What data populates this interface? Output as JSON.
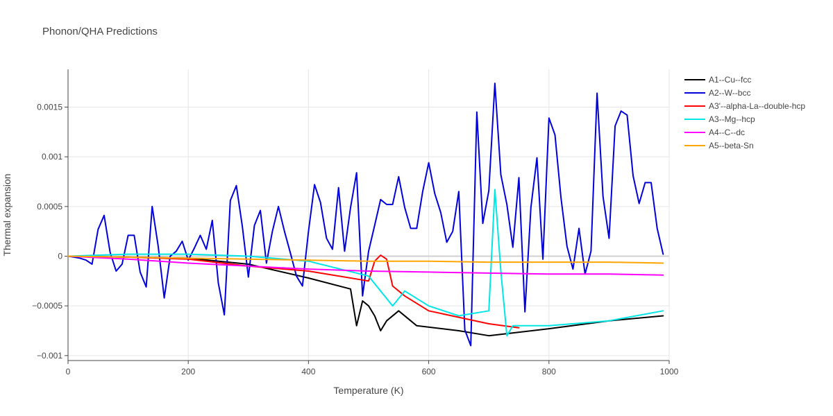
{
  "chart_data": {
    "type": "line",
    "title": "Phonon/QHA Predictions",
    "xlabel": "Temperature (K)",
    "ylabel": "Thermal expansion",
    "xlim": [
      0,
      1000
    ],
    "ylim": [
      -0.00105,
      0.00188
    ],
    "xticks": [
      0,
      200,
      400,
      600,
      800,
      1000
    ],
    "xtick_labels": [
      "0",
      "200",
      "400",
      "600",
      "800",
      "1000"
    ],
    "yticks": [
      -0.001,
      -0.0005,
      0,
      0.0005,
      0.001,
      0.0015
    ],
    "ytick_labels": [
      "−0.001",
      "−0.0005",
      "0",
      "0.0005",
      "0.001",
      "0.0015"
    ],
    "grid": true,
    "legend_position": "right",
    "series": [
      {
        "name": "A1--Cu--fcc",
        "color": "#000000",
        "x": [
          0,
          100,
          200,
          300,
          400,
          470,
          480,
          490,
          500,
          510,
          520,
          530,
          550,
          580,
          650,
          700,
          800,
          900,
          990
        ],
        "y": [
          0,
          -1e-05,
          -2e-05,
          -8e-05,
          -0.00022,
          -0.00033,
          -0.0007,
          -0.00045,
          -0.0005,
          -0.0006,
          -0.00075,
          -0.00065,
          -0.00055,
          -0.0007,
          -0.00075,
          -0.0008,
          -0.00073,
          -0.00065,
          -0.0006
        ]
      },
      {
        "name": "A2--W--bcc",
        "color": "#0000dd",
        "x": [
          0,
          10,
          20,
          30,
          40,
          50,
          60,
          70,
          80,
          90,
          100,
          110,
          120,
          130,
          140,
          150,
          160,
          170,
          180,
          190,
          200,
          210,
          220,
          230,
          240,
          250,
          260,
          270,
          280,
          290,
          300,
          310,
          320,
          330,
          340,
          350,
          360,
          370,
          380,
          390,
          400,
          410,
          420,
          430,
          440,
          450,
          460,
          470,
          480,
          490,
          500,
          510,
          520,
          530,
          540,
          550,
          560,
          570,
          580,
          590,
          600,
          610,
          620,
          630,
          640,
          650,
          660,
          670,
          680,
          690,
          700,
          710,
          720,
          730,
          740,
          750,
          760,
          770,
          780,
          790,
          800,
          810,
          820,
          830,
          840,
          850,
          860,
          870,
          880,
          890,
          900,
          910,
          920,
          930,
          940,
          950,
          960,
          970,
          980,
          990
        ],
        "y": [
          0,
          -1e-05,
          -2e-05,
          -4e-05,
          -8e-05,
          0.00027,
          0.00041,
          4e-05,
          -0.00015,
          -8e-05,
          0.00021,
          0.00021,
          -0.00016,
          -0.00031,
          0.0005,
          0.0001,
          -0.00042,
          0.0,
          5e-05,
          0.00015,
          -4e-05,
          8e-05,
          0.00021,
          7e-05,
          0.00036,
          -0.00027,
          -0.00059,
          0.00056,
          0.00071,
          0.0003,
          -0.00021,
          0.00031,
          0.00046,
          -7e-05,
          0.00025,
          0.0005,
          0.00025,
          3e-05,
          -0.0002,
          -0.0003,
          0.00025,
          0.00072,
          0.00054,
          0.00018,
          7e-05,
          0.00069,
          5e-05,
          0.00049,
          0.00084,
          -0.0004,
          5e-05,
          0.00031,
          0.00057,
          0.00052,
          0.00052,
          0.0008,
          0.00049,
          0.00028,
          0.00028,
          0.00065,
          0.00094,
          0.00063,
          0.00044,
          0.00014,
          0.00025,
          0.00065,
          -0.00074,
          -0.0009,
          0.00145,
          0.00033,
          0.00066,
          0.00174,
          0.00082,
          0.00052,
          9e-05,
          0.00079,
          -0.00056,
          0.00049,
          0.00099,
          -3e-05,
          0.00139,
          0.00122,
          0.00059,
          0.0001,
          -0.00013,
          0.00028,
          -0.00018,
          5e-05,
          0.00164,
          0.0006,
          0.00018,
          0.00131,
          0.00146,
          0.00142,
          0.00081,
          0.00053,
          0.00074,
          0.00074,
          0.00028,
          2e-05
        ]
      },
      {
        "name": "A3'--alpha-La--double-hcp",
        "color": "#ff0000",
        "x": [
          0,
          100,
          200,
          300,
          400,
          500,
          510,
          520,
          530,
          540,
          560,
          600,
          700,
          750
        ],
        "y": [
          0,
          -1e-05,
          -3e-05,
          -0.0001,
          -0.00015,
          -0.00025,
          -5e-05,
          1e-05,
          -3e-05,
          -0.0003,
          -0.0004,
          -0.00055,
          -0.00068,
          -0.00072
        ]
      },
      {
        "name": "A3--Mg--hcp",
        "color": "#00e6e6",
        "x": [
          0,
          100,
          200,
          300,
          400,
          500,
          540,
          560,
          600,
          650,
          700,
          710,
          720,
          730,
          740,
          750,
          800,
          900,
          990
        ],
        "y": [
          0,
          2e-05,
          2e-05,
          0.0,
          -5e-05,
          -0.0002,
          -0.0005,
          -0.00035,
          -0.0005,
          -0.0006,
          -0.00055,
          0.00067,
          -0.00015,
          -0.0008,
          -0.0007,
          -0.0007,
          -0.0007,
          -0.00065,
          -0.00055
        ]
      },
      {
        "name": "A4--C--dc",
        "color": "#ff00ff",
        "x": [
          0,
          100,
          200,
          300,
          400,
          500,
          600,
          700,
          800,
          900,
          990
        ],
        "y": [
          0,
          -3e-05,
          -7e-05,
          -0.0001,
          -0.00013,
          -0.00015,
          -0.00016,
          -0.00017,
          -0.00018,
          -0.00018,
          -0.00019
        ]
      },
      {
        "name": "A5--beta-Sn",
        "color": "#ffa500",
        "x": [
          0,
          100,
          200,
          300,
          400,
          500,
          600,
          700,
          800,
          900,
          990
        ],
        "y": [
          0,
          -1e-05,
          -2e-05,
          -3e-05,
          -4e-05,
          -5e-05,
          -5e-05,
          -6e-05,
          -6e-05,
          -6e-05,
          -7e-05
        ]
      }
    ]
  }
}
